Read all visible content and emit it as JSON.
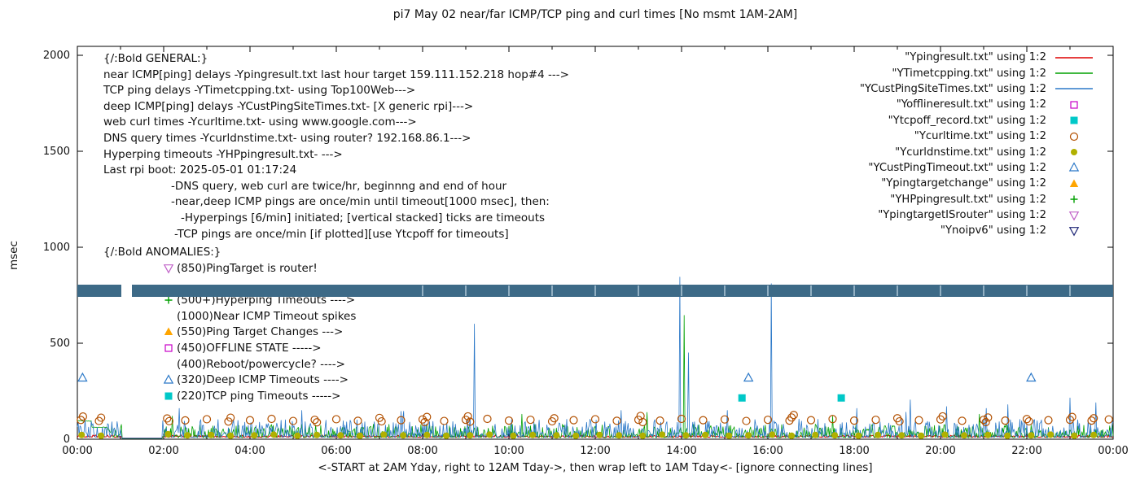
{
  "title": "pi7 May 02  near/far ICMP/TCP ping and curl times [No msmt 1AM-2AM]",
  "axes": {
    "y_label": "msec",
    "x_label": "<-START at 2AM Yday, right to 12AM Tday->, then wrap left to 1AM Tday<- [ignore connecting lines]",
    "y_ticks": [
      {
        "label": "0",
        "value": 0
      },
      {
        "label": "500",
        "value": 500
      },
      {
        "label": "1000",
        "value": 1000
      },
      {
        "label": "1500",
        "value": 1500
      },
      {
        "label": "2000",
        "value": 2000
      }
    ],
    "x_ticks": [
      {
        "label": "00:00",
        "hour": 0
      },
      {
        "label": "02:00",
        "hour": 2
      },
      {
        "label": "04:00",
        "hour": 4
      },
      {
        "label": "06:00",
        "hour": 6
      },
      {
        "label": "08:00",
        "hour": 8
      },
      {
        "label": "10:00",
        "hour": 10
      },
      {
        "label": "12:00",
        "hour": 12
      },
      {
        "label": "14:00",
        "hour": 14
      },
      {
        "label": "16:00",
        "hour": 16
      },
      {
        "label": "18:00",
        "hour": 18
      },
      {
        "label": "20:00",
        "hour": 20
      },
      {
        "label": "22:00",
        "hour": 22
      },
      {
        "label": "00:00",
        "hour": 24
      }
    ]
  },
  "legend": {
    "entries": [
      {
        "label": "\"Ypingresult.txt\" using 1:2",
        "marker": "line",
        "color": "#dd0000"
      },
      {
        "label": "\"YTimetcpping.txt\" using 1:2",
        "marker": "line",
        "color": "#00a000"
      },
      {
        "label": "\"YCustPingSiteTimes.txt\" using 1:2",
        "marker": "line",
        "color": "#2b78c8"
      },
      {
        "label": "\"Yofflineresult.txt\" using 1:2",
        "marker": "square-open",
        "color": "#c800c8"
      },
      {
        "label": "\"Ytcpoff_record.txt\" using 1:2",
        "marker": "square-fill",
        "color": "#00c8c8"
      },
      {
        "label": "\"Ycurltime.txt\" using 1:2",
        "marker": "circle-open",
        "color": "#b25000"
      },
      {
        "label": "\"Ycurldnstime.txt\" using 1:2",
        "marker": "circle-fill",
        "color": "#b0b000"
      },
      {
        "label": "\"YCustPingTimeout.txt\" using 1:2",
        "marker": "tri-up-open",
        "color": "#2b78c8"
      },
      {
        "label": "\"Ypingtargetchange\" using 1:2",
        "marker": "tri-up-fill",
        "color": "#ffa500"
      },
      {
        "label": "\"YHPpingresult.txt\" using 1:2",
        "marker": "plus",
        "color": "#00a000"
      },
      {
        "label": "\"YpingtargetISrouter\" using 1:2",
        "marker": "tri-down-open",
        "color": "#c060c8"
      },
      {
        "label": "\"Ynoipv6\" using 1:2",
        "marker": "tri-down-open",
        "color": "#202878"
      }
    ]
  },
  "annotations": {
    "general": {
      "lines": [
        {
          "text": "{/:Bold GENERAL:}",
          "indent": 0
        },
        {
          "text": "near ICMP[ping] delays -Ypingresult.txt last hour target 159.111.152.218 hop#4 --->",
          "indent": 0
        },
        {
          "text": "TCP ping delays -YTimetcpping.txt- using Top100Web--->",
          "indent": 0
        },
        {
          "text": "deep ICMP[ping] delays -YCustPingSiteTimes.txt- [X generic rpi]--->",
          "indent": 0
        },
        {
          "text": "web curl times -Ycurltime.txt- using www.google.com--->",
          "indent": 0
        },
        {
          "text": "DNS query times -Ycurldnstime.txt- using router? 192.168.86.1--->",
          "indent": 0
        },
        {
          "text": "Hyperping timeouts -YHPpingresult.txt- --->",
          "indent": 0
        },
        {
          "text": "Last rpi boot: 2025-05-01 01:17:24",
          "indent": 0
        },
        {
          "text": "-DNS query, web curl are twice/hr, beginnng and end of hour",
          "indent": 83
        },
        {
          "text": "-near,deep ICMP pings are once/min until timeout[1000 msec], then:",
          "indent": 83
        },
        {
          "text": "-Hyperpings [6/min] initiated; [vertical stacked] ticks are timeouts",
          "indent": 95
        },
        {
          "text": "-TCP pings are once/min [if plotted][use Ytcpoff for timeouts]",
          "indent": 87
        }
      ]
    },
    "anomalies": {
      "lines": [
        {
          "header": true,
          "text": "{/:Bold ANOMALIES:}"
        },
        {
          "marker": "tri-down-open",
          "color": "#c060c8",
          "text": "(850)PingTarget is router!"
        },
        {
          "marker": null,
          "text": ""
        },
        {
          "marker": "plus",
          "color": "#00a000",
          "text": "(500+)Hyperping Timeouts ---->"
        },
        {
          "marker": null,
          "text": "(1000)Near ICMP Timeout spikes"
        },
        {
          "marker": "tri-up-fill",
          "color": "#ffa500",
          "text": "(550)Ping Target Changes --->"
        },
        {
          "marker": "square-open",
          "color": "#c800c8",
          "text": "(450)OFFLINE STATE ----->"
        },
        {
          "marker": null,
          "text": "(400)Reboot/powercycle? ---->"
        },
        {
          "marker": "tri-up-open",
          "color": "#2b78c8",
          "text": "(320)Deep ICMP Timeouts ---->"
        },
        {
          "marker": "square-fill",
          "color": "#00c8c8",
          "text": "(220)TCP ping Timeouts ----->"
        }
      ]
    }
  },
  "chart_data": {
    "type": "line",
    "x_unit": "hour of day",
    "y_unit": "msec",
    "ylim": [
      0,
      2000
    ],
    "xlim_hours": [
      0,
      24
    ],
    "no_measurement_window_hours": [
      1,
      2
    ],
    "series": [
      {
        "name": "Ypingresult.txt",
        "kind": "line",
        "color": "#dd0000",
        "width": 1,
        "noise": {
          "base": 10,
          "amp": 12,
          "pow": 2
        },
        "spikes": []
      },
      {
        "name": "YTimetcpping.txt",
        "kind": "line",
        "color": "#00a000",
        "width": 0.8,
        "noise": {
          "base": 8,
          "amp": 70,
          "pow": 2.5
        },
        "plateaus": [
          {
            "from": 0,
            "to": 0.33,
            "v": 95
          },
          {
            "from": 0.34,
            "to": 0.7,
            "v": 62
          }
        ],
        "spikes": [
          [
            2.2,
            120
          ],
          [
            10.3,
            130
          ],
          [
            13.2,
            140
          ],
          [
            14.05,
            645
          ],
          [
            17.5,
            120
          ],
          [
            20.9,
            130
          ]
        ]
      },
      {
        "name": "YCustPingSiteTimes.txt",
        "kind": "line",
        "color": "#2b78c8",
        "width": 0.8,
        "noise": {
          "base": 10,
          "amp": 95,
          "pow": 3,
          "burst": 0.02
        },
        "spikes": [
          [
            2.35,
            160
          ],
          [
            5.2,
            150
          ],
          [
            7.5,
            145
          ],
          [
            9.2,
            600
          ],
          [
            12.6,
            150
          ],
          [
            13.95,
            845
          ],
          [
            14.15,
            450
          ],
          [
            15.05,
            150
          ],
          [
            16.08,
            810
          ],
          [
            18.05,
            160
          ],
          [
            19.3,
            205
          ],
          [
            20.15,
            170
          ],
          [
            21.05,
            160
          ],
          [
            21.55,
            180
          ],
          [
            23.0,
            215
          ],
          [
            23.6,
            190
          ]
        ]
      },
      {
        "name": "Ycurltime.txt",
        "kind": "scatter",
        "marker": "circle-open",
        "color": "#b25000",
        "points": [
          [
            0.08,
            100
          ],
          [
            0.13,
            118
          ],
          [
            0.5,
            95
          ],
          [
            0.55,
            112
          ],
          [
            2.08,
            108
          ],
          [
            2.13,
            94
          ],
          [
            2.5,
            98
          ],
          [
            3.0,
            104
          ],
          [
            3.5,
            92
          ],
          [
            3.55,
            112
          ],
          [
            4.0,
            99
          ],
          [
            4.5,
            106
          ],
          [
            5.0,
            95
          ],
          [
            5.5,
            101
          ],
          [
            5.55,
            88
          ],
          [
            6.0,
            104
          ],
          [
            6.5,
            96
          ],
          [
            7.0,
            111
          ],
          [
            7.05,
            93
          ],
          [
            7.5,
            99
          ],
          [
            8.0,
            103
          ],
          [
            8.05,
            89
          ],
          [
            8.1,
            116
          ],
          [
            8.5,
            95
          ],
          [
            9.0,
            101
          ],
          [
            9.05,
            119
          ],
          [
            9.1,
            91
          ],
          [
            9.5,
            106
          ],
          [
            10.0,
            97
          ],
          [
            10.5,
            101
          ],
          [
            11.0,
            93
          ],
          [
            11.05,
            109
          ],
          [
            11.5,
            99
          ],
          [
            12.0,
            104
          ],
          [
            12.5,
            96
          ],
          [
            13.0,
            101
          ],
          [
            13.05,
            121
          ],
          [
            13.1,
            89
          ],
          [
            13.5,
            97
          ],
          [
            14.0,
            106
          ],
          [
            14.5,
            99
          ],
          [
            15.0,
            103
          ],
          [
            15.5,
            95
          ],
          [
            16.0,
            101
          ],
          [
            16.5,
            97
          ],
          [
            16.55,
            113
          ],
          [
            16.6,
            126
          ],
          [
            17.0,
            99
          ],
          [
            17.5,
            105
          ],
          [
            18.0,
            97
          ],
          [
            18.5,
            101
          ],
          [
            19.0,
            109
          ],
          [
            19.05,
            93
          ],
          [
            19.5,
            99
          ],
          [
            20.0,
            103
          ],
          [
            20.05,
            119
          ],
          [
            20.5,
            96
          ],
          [
            21.0,
            101
          ],
          [
            21.05,
            89
          ],
          [
            21.1,
            113
          ],
          [
            21.5,
            97
          ],
          [
            22.0,
            105
          ],
          [
            22.05,
            93
          ],
          [
            22.5,
            99
          ],
          [
            23.0,
            101
          ],
          [
            23.05,
            116
          ],
          [
            23.5,
            97
          ],
          [
            23.55,
            109
          ],
          [
            23.9,
            103
          ]
        ]
      },
      {
        "name": "Ycurldnstime.txt",
        "kind": "scatter",
        "marker": "circle-fill",
        "color": "#b0b000",
        "points": [
          [
            0.1,
            22
          ],
          [
            0.55,
            18
          ],
          [
            2.1,
            26
          ],
          [
            2.55,
            20
          ],
          [
            3.1,
            22
          ],
          [
            3.55,
            18
          ],
          [
            4.1,
            20
          ],
          [
            4.55,
            24
          ],
          [
            5.1,
            18
          ],
          [
            5.55,
            22
          ],
          [
            6.1,
            20
          ],
          [
            6.55,
            18
          ],
          [
            7.1,
            24
          ],
          [
            7.55,
            20
          ],
          [
            8.1,
            22
          ],
          [
            8.55,
            18
          ],
          [
            9.1,
            20
          ],
          [
            9.55,
            24
          ],
          [
            10.1,
            18
          ],
          [
            10.55,
            22
          ],
          [
            11.1,
            20
          ],
          [
            11.55,
            18
          ],
          [
            12.1,
            22
          ],
          [
            12.55,
            20
          ],
          [
            13.1,
            18
          ],
          [
            13.55,
            24
          ],
          [
            14.1,
            20
          ],
          [
            14.55,
            22
          ],
          [
            15.1,
            18
          ],
          [
            15.55,
            20
          ],
          [
            16.1,
            24
          ],
          [
            16.55,
            18
          ],
          [
            17.1,
            22
          ],
          [
            17.55,
            20
          ],
          [
            18.1,
            18
          ],
          [
            18.55,
            22
          ],
          [
            19.1,
            20
          ],
          [
            19.55,
            18
          ],
          [
            20.1,
            24
          ],
          [
            20.55,
            20
          ],
          [
            21.1,
            22
          ],
          [
            21.55,
            18
          ],
          [
            22.1,
            20
          ],
          [
            22.55,
            24
          ],
          [
            23.1,
            18
          ],
          [
            23.55,
            22
          ]
        ]
      },
      {
        "name": "YCustPingTimeout.txt",
        "kind": "scatter",
        "marker": "tri-up-open",
        "color": "#2b78c8",
        "points": [
          [
            0.12,
            320
          ],
          [
            15.55,
            320
          ],
          [
            22.1,
            320
          ]
        ]
      },
      {
        "name": "Ytcpoff_record.txt",
        "kind": "scatter",
        "marker": "square-fill",
        "color": "#00c8c8",
        "points": [
          [
            15.4,
            215
          ],
          [
            17.7,
            215
          ]
        ]
      },
      {
        "name": "stacked-timeout-ticks-band",
        "kind": "band",
        "color": "#3d6a87",
        "y_range": [
          740,
          805
        ],
        "segments": [
          [
            0,
            1.02
          ],
          [
            1.27,
            24
          ]
        ],
        "light_ticks_hours": [
          8,
          9,
          10,
          11,
          12,
          13,
          14,
          15,
          16,
          17,
          18,
          19,
          20,
          21,
          22,
          23
        ]
      }
    ]
  }
}
